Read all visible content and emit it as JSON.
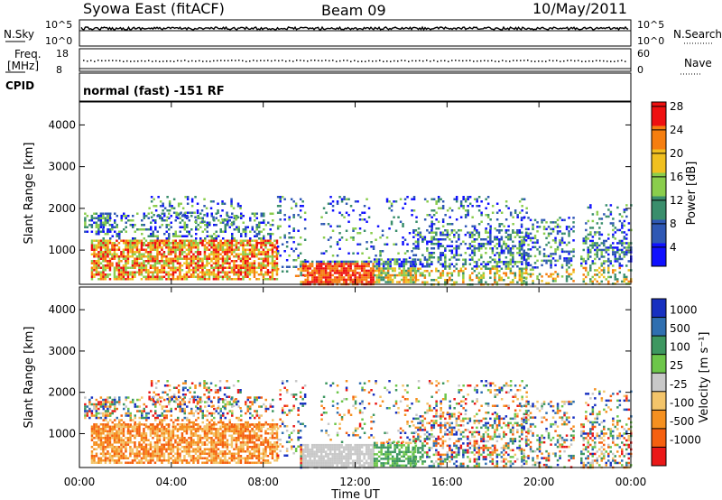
{
  "header": {
    "station": "Syowa East (fitACF)",
    "beam": "Beam 09",
    "date": "10/May/2011"
  },
  "noise_panel": {
    "left_label": "N.Sky",
    "right_label": "N.Search",
    "ticks_left": [
      "10^5",
      "10^0"
    ],
    "ticks_right": [
      "10^5",
      "10^0"
    ]
  },
  "freq_panel": {
    "label_line1": "Freq.",
    "label_line2": "[MHz]",
    "right_label": "Nave",
    "ticks_left": [
      "18",
      "8"
    ],
    "ticks_right": [
      "60",
      "0"
    ]
  },
  "cpid_panel": {
    "label": "CPID",
    "text": "normal (fast) -151 RF"
  },
  "chart_data": [
    {
      "type": "heatmap",
      "name": "power",
      "ylabel": "Slant Range [km]",
      "yticks": [
        "1000",
        "2000",
        "3000",
        "4000"
      ],
      "colorbar_label": "Power [dB]",
      "colorbar_ticks": [
        "4",
        "8",
        "12",
        "16",
        "20",
        "24",
        "28"
      ],
      "colors": [
        "#1010ff",
        "#2f58b4",
        "#3a8e6c",
        "#8acd4c",
        "#f0c020",
        "#f57e10",
        "#ee1010"
      ]
    },
    {
      "type": "heatmap",
      "name": "velocity",
      "ylabel": "Slant Range [km]",
      "yticks": [
        "1000",
        "2000",
        "3000",
        "4000"
      ],
      "colorbar_label": "Velocity [m s⁻¹]",
      "colorbar_ticks": [
        "1000",
        "500",
        "100",
        "25",
        "-25",
        "-100",
        "-500",
        "-1000"
      ],
      "colors": [
        "#1730c0",
        "#2f6fb0",
        "#3d9760",
        "#6dc64a",
        "#c8c8c8",
        "#f3c46a",
        "#f59020",
        "#f56010",
        "#ea1818"
      ]
    }
  ],
  "xaxis": {
    "label": "Time UT",
    "ticks": [
      "00:00",
      "04:00",
      "08:00",
      "12:00",
      "16:00",
      "20:00",
      "00:00"
    ]
  }
}
